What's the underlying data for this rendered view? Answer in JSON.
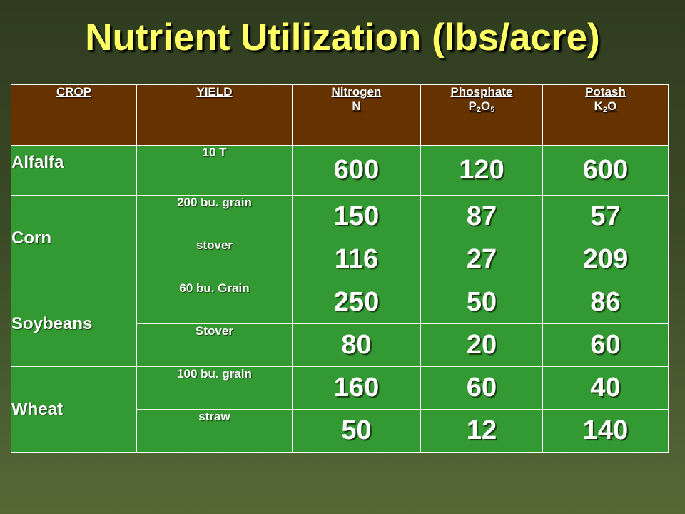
{
  "title": "Nutrient Utilization (lbs/acre)",
  "table": {
    "headers": {
      "crop": "CROP",
      "yield": "YIELD",
      "nitrogen": {
        "name": "Nitrogen",
        "symbol": "N"
      },
      "phosphate": {
        "name": "Phosphate",
        "symbol_p": "P",
        "sub_p": "2",
        "symbol_o": "O",
        "sub_o": "5"
      },
      "potash": {
        "name": "Potash",
        "symbol_k": "K",
        "sub_k": "2",
        "symbol_o": "O"
      }
    },
    "crops": [
      {
        "name": "Alfalfa",
        "rows": [
          {
            "yield": "10 T",
            "nitrogen": "600",
            "phosphate": "120",
            "potash": "600"
          }
        ]
      },
      {
        "name": "Corn",
        "rows": [
          {
            "yield": "200 bu. grain",
            "nitrogen": "150",
            "phosphate": "87",
            "potash": "57"
          },
          {
            "yield": "stover",
            "nitrogen": "116",
            "phosphate": "27",
            "potash": "209"
          }
        ]
      },
      {
        "name": "Soybeans",
        "rows": [
          {
            "yield": "60 bu. Grain",
            "nitrogen": "250",
            "phosphate": "50",
            "potash": "86"
          },
          {
            "yield": "Stover",
            "nitrogen": "80",
            "phosphate": "20",
            "potash": "60"
          }
        ]
      },
      {
        "name": "Wheat",
        "rows": [
          {
            "yield": "100 bu. grain",
            "nitrogen": "160",
            "phosphate": "60",
            "potash": "40"
          },
          {
            "yield": "straw",
            "nitrogen": "50",
            "phosphate": "12",
            "potash": "140"
          }
        ]
      }
    ]
  },
  "colors": {
    "title": "#ffff66",
    "header_bg": "#663300",
    "cell_bg": "#339933",
    "background": "#3b4a26"
  }
}
